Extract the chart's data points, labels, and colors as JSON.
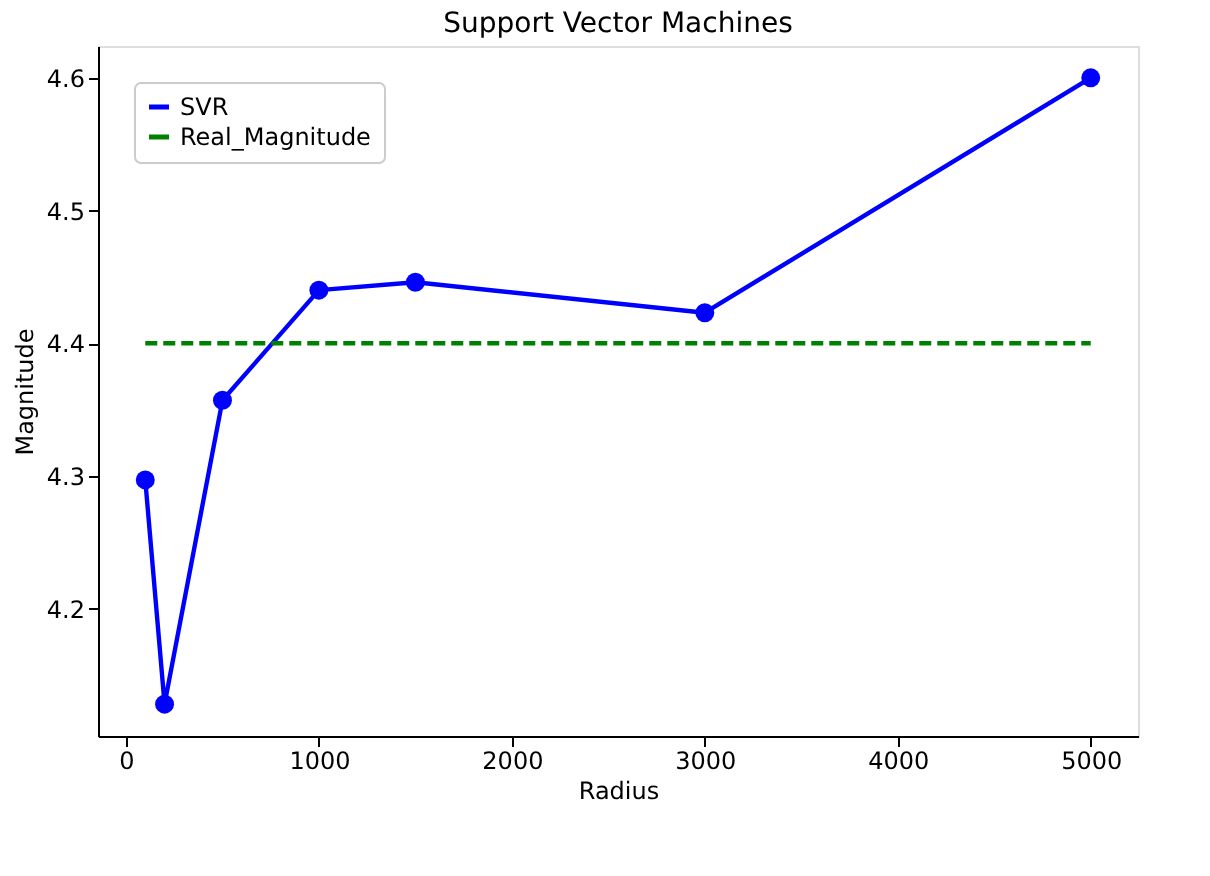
{
  "chart_data": {
    "type": "line",
    "title": "Support Vector Machines",
    "xlabel": "Radius",
    "ylabel": "Magnitude",
    "series": [
      {
        "name": "SVR",
        "color": "#0000ff",
        "marker": "circle",
        "line_style": "solid",
        "x": [
          100,
          200,
          500,
          1000,
          1500,
          3000,
          5000
        ],
        "values": [
          4.297,
          4.128,
          4.357,
          4.44,
          4.446,
          4.423,
          4.6
        ]
      },
      {
        "name": "Real_Magnitude",
        "color": "#008000",
        "marker": "none",
        "line_style": "dashed",
        "x": [
          100,
          5000
        ],
        "values": [
          4.4,
          4.4
        ]
      }
    ],
    "xlim": [
      -145,
      5245
    ],
    "xticks": [
      0,
      1000,
      2000,
      3000,
      4000,
      5000
    ],
    "ylim": [
      4.104,
      4.624
    ],
    "yticks": [
      {
        "value": 4.2,
        "label": "4.2"
      },
      {
        "value": 4.3,
        "label": "4.3"
      },
      {
        "value": 4.4,
        "label": "4.4"
      },
      {
        "value": 4.5,
        "label": "4.5"
      },
      {
        "value": 4.6,
        "label": "4.6"
      }
    ],
    "grid": false,
    "legend": "top left"
  }
}
